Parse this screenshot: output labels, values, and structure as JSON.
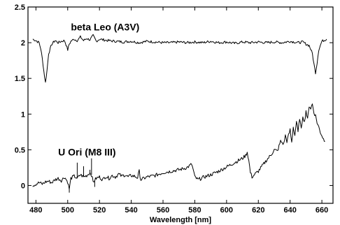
{
  "chart_data": {
    "type": "line",
    "title": "",
    "xlabel": "Wavelength [nm]",
    "ylabel": "",
    "xlim": [
      475,
      667
    ],
    "ylim": [
      -0.25,
      2.5
    ],
    "x_ticks": [
      480,
      500,
      520,
      540,
      560,
      580,
      600,
      620,
      640,
      660
    ],
    "x_tick_labels": [
      "480",
      "500",
      "520",
      "540",
      "560",
      "580",
      "600",
      "620",
      "640",
      "660"
    ],
    "y_ticks": [
      0,
      0.5,
      1,
      1.5,
      2,
      2.5
    ],
    "y_tick_labels": [
      "0",
      "0.5",
      "1",
      "1.5",
      "2",
      "2.5"
    ],
    "grid": false,
    "legend": "none",
    "series": [
      {
        "name": "beta Leo (A3V)",
        "label_anchor": [
          502,
          2.17
        ],
        "x": [
          478,
          480,
          482,
          483,
          484,
          485,
          486,
          487,
          488,
          490,
          492,
          494,
          496,
          498,
          499,
          500,
          501,
          502,
          504,
          506,
          508,
          510,
          512,
          514,
          516,
          518,
          520,
          525,
          530,
          535,
          540,
          545,
          550,
          555,
          560,
          565,
          570,
          575,
          580,
          585,
          590,
          595,
          600,
          605,
          610,
          615,
          620,
          625,
          630,
          635,
          640,
          645,
          648,
          650,
          652,
          654,
          655,
          656,
          657,
          658,
          660,
          662,
          663
        ],
        "values": [
          2.05,
          2.03,
          2.0,
          1.92,
          1.78,
          1.6,
          1.44,
          1.62,
          1.85,
          1.98,
          2.03,
          2.0,
          2.02,
          2.03,
          1.97,
          1.9,
          1.98,
          2.02,
          2.05,
          2.03,
          2.08,
          2.03,
          2.06,
          2.04,
          2.1,
          2.02,
          2.05,
          2.03,
          2.02,
          2.01,
          2.02,
          2.0,
          2.02,
          2.01,
          2.0,
          2.0,
          2.01,
          2.0,
          2.01,
          2.0,
          2.02,
          2.0,
          2.01,
          1.99,
          2.01,
          2.0,
          2.01,
          2.0,
          2.01,
          2.0,
          2.02,
          2.0,
          2.01,
          1.98,
          1.96,
          1.85,
          1.7,
          1.58,
          1.72,
          1.9,
          2.02,
          2.04,
          2.05
        ]
      },
      {
        "name": "U Ori (M8 III)",
        "label_anchor": [
          494,
          0.42
        ],
        "x": [
          478,
          480,
          482,
          484,
          486,
          488,
          490,
          492,
          494,
          496,
          498,
          500,
          501,
          502,
          504,
          506,
          508,
          510,
          512,
          514,
          515,
          516,
          518,
          520,
          522,
          524,
          526,
          528,
          530,
          532,
          534,
          536,
          538,
          540,
          542,
          544,
          545,
          546,
          550,
          555,
          560,
          565,
          570,
          575,
          577,
          578,
          579,
          580,
          582,
          584,
          586,
          590,
          595,
          600,
          605,
          610,
          612,
          613,
          614,
          615,
          616,
          620,
          625,
          628,
          630,
          632,
          634,
          636,
          637,
          638,
          640,
          641,
          642,
          643,
          644,
          645,
          646,
          647,
          648,
          649,
          650,
          651,
          652,
          653,
          654,
          655,
          656,
          657,
          658,
          659,
          660,
          661,
          662
        ],
        "values": [
          0.0,
          0.02,
          0.04,
          0.02,
          0.05,
          0.06,
          0.04,
          0.08,
          0.1,
          0.07,
          0.12,
          0.05,
          -0.05,
          0.1,
          0.13,
          0.1,
          0.15,
          0.12,
          0.14,
          0.18,
          0.15,
          0.05,
          0.1,
          0.12,
          0.08,
          0.13,
          0.1,
          0.14,
          0.12,
          0.16,
          0.13,
          0.15,
          0.12,
          0.14,
          0.13,
          0.11,
          0.2,
          0.08,
          0.12,
          0.14,
          0.18,
          0.2,
          0.22,
          0.25,
          0.28,
          0.3,
          0.22,
          0.12,
          0.08,
          0.1,
          0.12,
          0.15,
          0.2,
          0.26,
          0.32,
          0.38,
          0.42,
          0.47,
          0.35,
          0.18,
          0.12,
          0.2,
          0.35,
          0.43,
          0.5,
          0.48,
          0.62,
          0.58,
          0.7,
          0.62,
          0.78,
          0.6,
          0.82,
          0.7,
          0.9,
          0.74,
          0.95,
          0.78,
          0.98,
          0.88,
          1.05,
          0.92,
          1.12,
          1.08,
          1.14,
          1.02,
          0.98,
          0.88,
          0.82,
          0.75,
          0.7,
          0.65,
          0.62
        ]
      }
    ],
    "spikes": [
      {
        "x": 501,
        "y": -0.1
      },
      {
        "x": 506,
        "y": 0.32
      },
      {
        "x": 510,
        "y": 0.27
      },
      {
        "x": 514,
        "y": 0.22
      },
      {
        "x": 515,
        "y": 0.38
      },
      {
        "x": 517,
        "y": -0.02
      }
    ]
  }
}
